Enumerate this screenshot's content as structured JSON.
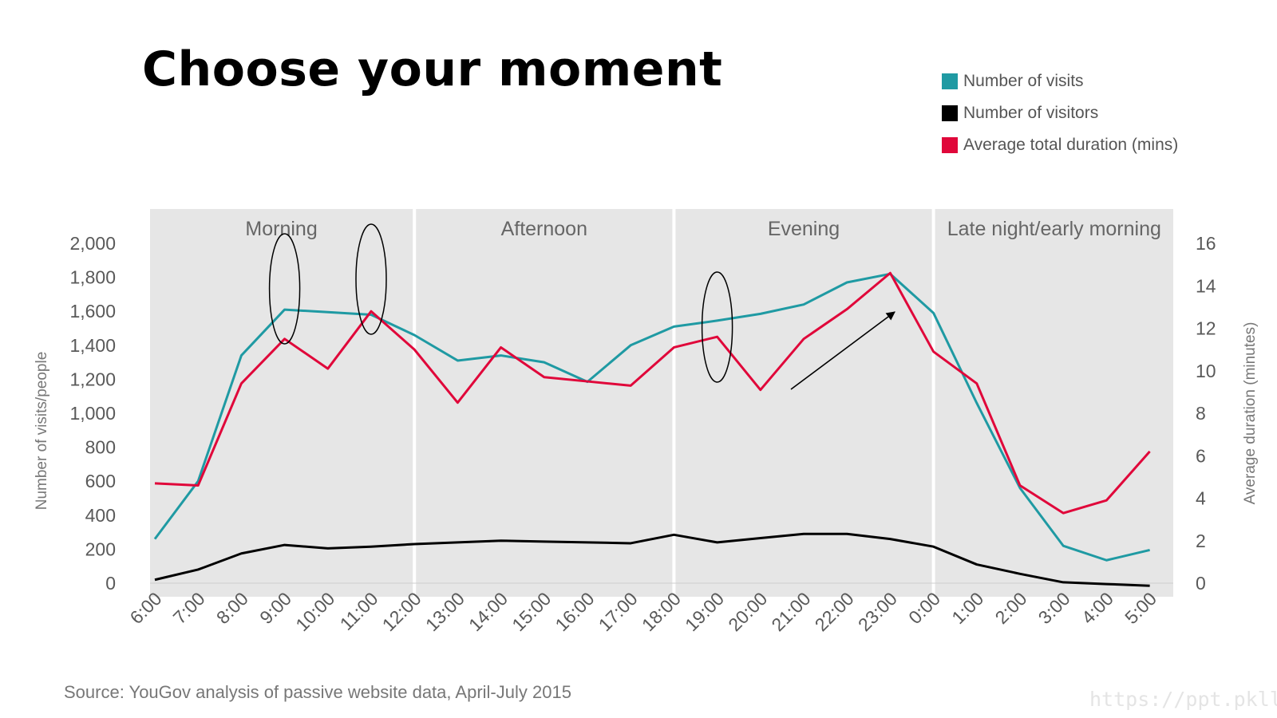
{
  "title": "Choose your moment",
  "legend": [
    {
      "label": "Number of visits",
      "color": "#1f9aa3"
    },
    {
      "label": "Number of visitors",
      "color": "#000000"
    },
    {
      "label": "Average total duration (mins)",
      "color": "#e0073a"
    }
  ],
  "source": "Source: YouGov analysis of passive website data, April-July 2015",
  "watermark": "https://ppt.pkll.de",
  "chart_data": {
    "type": "line",
    "ylabel": "Number of visits/people",
    "ylabel_right": "Average duration (minutes)",
    "ylim": [
      0,
      2000
    ],
    "ylim_right": [
      0,
      16
    ],
    "y_ticks": [
      "0",
      "200",
      "400",
      "600",
      "800",
      "1,000",
      "1,200",
      "1,400",
      "1,600",
      "1,800",
      "2,000"
    ],
    "y_ticks_right": [
      "0",
      "2",
      "4",
      "6",
      "8",
      "10",
      "12",
      "14",
      "16"
    ],
    "x": [
      "6:00",
      "7:00",
      "8:00",
      "9:00",
      "10:00",
      "11:00",
      "12:00",
      "13:00",
      "14:00",
      "15:00",
      "16:00",
      "17:00",
      "18:00",
      "19:00",
      "20:00",
      "21:00",
      "22:00",
      "23:00",
      "0:00",
      "1:00",
      "2:00",
      "3:00",
      "4:00",
      "5:00"
    ],
    "regions": [
      {
        "label": "Morning",
        "from": "6:00",
        "to": "12:00"
      },
      {
        "label": "Afternoon",
        "from": "12:00",
        "to": "18:00"
      },
      {
        "label": "Evening",
        "from": "18:00",
        "to": "0:00"
      },
      {
        "label": "Late night/early morning",
        "from": "0:00",
        "to": "5:00"
      }
    ],
    "series": [
      {
        "name": "Number of visits",
        "axis": "left",
        "color": "#1f9aa3",
        "values": [
          260,
          600,
          1340,
          1610,
          1595,
          1580,
          1460,
          1310,
          1340,
          1300,
          1185,
          1400,
          1510,
          1545,
          1585,
          1640,
          1770,
          1820,
          1590,
          1060,
          560,
          220,
          135,
          195
        ]
      },
      {
        "name": "Number of visitors",
        "axis": "left",
        "color": "#000000",
        "values": [
          20,
          80,
          175,
          225,
          205,
          215,
          230,
          240,
          250,
          245,
          240,
          235,
          285,
          240,
          265,
          290,
          290,
          260,
          215,
          110,
          55,
          5,
          -5,
          -15
        ]
      },
      {
        "name": "Average total duration (mins)",
        "axis": "right",
        "color": "#e0073a",
        "values": [
          4.7,
          4.6,
          9.4,
          11.5,
          10.1,
          12.8,
          11.0,
          8.5,
          11.1,
          9.7,
          9.5,
          9.3,
          11.1,
          11.6,
          9.1,
          11.5,
          12.9,
          14.6,
          10.9,
          9.4,
          4.6,
          3.3,
          3.9,
          6.2
        ]
      }
    ],
    "grid": false
  }
}
